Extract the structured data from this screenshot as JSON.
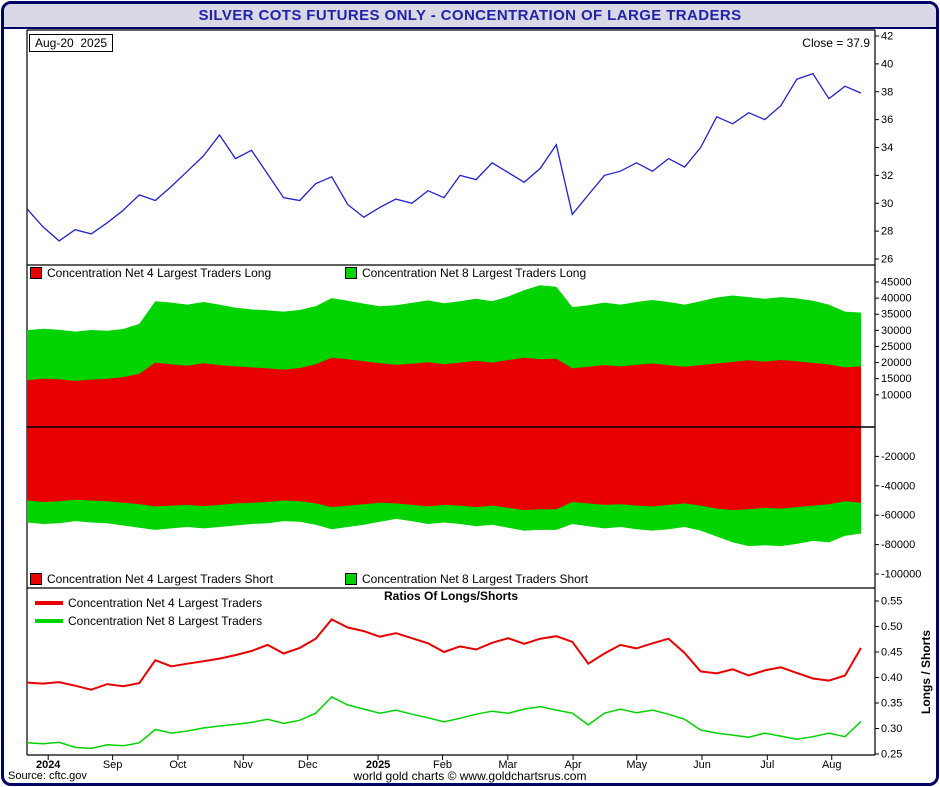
{
  "title": "SILVER COTS FUTURES ONLY - CONCENTRATION OF LARGE TRADERS",
  "footer": {
    "source": "Source: cftc.gov",
    "credit": "world gold charts © www.goldchartsrus.com"
  },
  "colors": {
    "frame_border": "#000066",
    "titlebar_bg": "#d9d9e6",
    "title_text": "#2222aa",
    "price": "#2222cc",
    "red": "#e80000",
    "green": "#00d300",
    "axis_text": "#000000"
  },
  "x_axis": {
    "labels": [
      "2024",
      "Sep",
      "Oct",
      "Nov",
      "Dec",
      "2025",
      "Feb",
      "Mar",
      "Apr",
      "May",
      "Jun",
      "Jul",
      "Aug"
    ],
    "fracs": [
      0.025,
      0.101,
      0.178,
      0.255,
      0.331,
      0.414,
      0.49,
      0.567,
      0.644,
      0.719,
      0.796,
      0.873,
      0.949
    ]
  },
  "chart_data": [
    {
      "type": "line",
      "panel": "price",
      "ylim": [
        26,
        42
      ],
      "y_ticks": [
        42,
        40,
        38,
        36,
        34,
        32,
        30,
        28,
        26
      ],
      "annotations": {
        "date_label": "Aug-20  2025",
        "close_label": "Close = 37.9"
      },
      "series": [
        {
          "name": "price",
          "color_key": "price",
          "values": [
            29.6,
            28.3,
            27.3,
            28.1,
            27.8,
            28.6,
            29.5,
            30.6,
            30.2,
            31.2,
            32.3,
            33.4,
            34.9,
            33.2,
            33.8,
            32.1,
            30.4,
            30.2,
            31.4,
            31.9,
            29.9,
            29.0,
            29.7,
            30.3,
            30.0,
            30.9,
            30.4,
            32.0,
            31.7,
            32.9,
            32.2,
            31.5,
            32.5,
            34.2,
            29.2,
            30.6,
            32.0,
            32.3,
            32.9,
            32.3,
            33.2,
            32.6,
            34.0,
            36.2,
            35.7,
            36.5,
            36.0,
            37.0,
            38.9,
            39.3,
            37.5,
            38.4,
            37.9
          ]
        }
      ]
    },
    {
      "type": "area",
      "panel": "concentration_net_positions",
      "ylim": [
        -100000,
        45000
      ],
      "y_ticks": [
        45000,
        40000,
        35000,
        30000,
        25000,
        20000,
        15000,
        10000,
        -20000,
        -40000,
        -60000,
        -80000,
        -100000
      ],
      "series": [
        {
          "name": "net8_long",
          "label": "Concentration Net 8 Largest Traders Long",
          "color_key": "green",
          "values": [
            30000,
            30500,
            30200,
            29600,
            30100,
            29900,
            30400,
            32000,
            39000,
            38600,
            38000,
            38800,
            38000,
            37000,
            36500,
            36200,
            35800,
            36300,
            37500,
            40000,
            39200,
            38300,
            37500,
            37800,
            38500,
            39300,
            38400,
            39000,
            39800,
            39000,
            40500,
            42500,
            44000,
            43500,
            37200,
            37800,
            38600,
            38000,
            38800,
            39400,
            38800,
            38000,
            39000,
            40200,
            40800,
            40300,
            39800,
            40300,
            39900,
            39200,
            38000,
            35800,
            35500
          ]
        },
        {
          "name": "net4_long",
          "label": "Concentration Net 4 Largest Traders Long",
          "color_key": "red",
          "values": [
            14500,
            15000,
            14800,
            14300,
            14700,
            15000,
            15500,
            16500,
            20000,
            19500,
            19000,
            19800,
            19200,
            18800,
            18500,
            18200,
            17800,
            18300,
            19500,
            21500,
            21000,
            20400,
            19800,
            19300,
            19600,
            20100,
            19500,
            20000,
            20500,
            20000,
            20800,
            21500,
            21000,
            21200,
            18200,
            18700,
            19200,
            18800,
            19300,
            19700,
            19200,
            18700,
            19200,
            19700,
            20200,
            20700,
            20300,
            20800,
            20400,
            19900,
            19400,
            18500,
            18800
          ]
        },
        {
          "name": "net8_short",
          "label": "Concentration Net 8 Largest Traders Short",
          "color_key": "green",
          "values": [
            -65000,
            -66000,
            -65500,
            -64000,
            -65000,
            -65500,
            -67000,
            -68500,
            -70000,
            -69000,
            -68000,
            -69000,
            -68000,
            -67000,
            -66000,
            -65500,
            -64000,
            -64500,
            -66500,
            -69500,
            -68000,
            -66500,
            -64500,
            -62500,
            -64000,
            -66000,
            -65000,
            -66000,
            -67500,
            -66500,
            -68500,
            -70500,
            -70000,
            -70000,
            -66000,
            -67500,
            -69000,
            -68000,
            -69500,
            -70500,
            -69500,
            -68000,
            -70500,
            -74500,
            -78500,
            -81000,
            -80500,
            -81000,
            -79500,
            -77500,
            -78500,
            -74000,
            -72500
          ]
        },
        {
          "name": "net4_short",
          "label": "Concentration Net 4 Largest Traders Short",
          "color_key": "red",
          "values": [
            -50000,
            -51000,
            -50500,
            -49500,
            -50000,
            -50500,
            -51500,
            -52500,
            -54000,
            -53500,
            -53000,
            -53800,
            -53000,
            -52000,
            -51500,
            -51000,
            -50000,
            -50500,
            -52000,
            -54500,
            -53500,
            -52500,
            -51500,
            -52000,
            -53000,
            -54000,
            -53000,
            -53500,
            -54500,
            -53500,
            -55000,
            -56500,
            -56000,
            -56000,
            -51000,
            -52000,
            -53000,
            -52500,
            -53500,
            -54000,
            -53000,
            -52000,
            -53500,
            -55500,
            -56500,
            -56000,
            -55000,
            -55500,
            -54500,
            -53500,
            -52500,
            -50500,
            -51500
          ]
        }
      ]
    },
    {
      "type": "line",
      "panel": "ratios",
      "title": "Ratios Of Longs/Shorts",
      "ylabel": "Longs / Shorts",
      "ylim": [
        0.25,
        0.55
      ],
      "y_ticks": [
        0.55,
        0.5,
        0.45,
        0.4,
        0.35,
        0.3,
        0.25
      ],
      "series": [
        {
          "name": "net4_ratio",
          "label": "Concentration Net 4 Largest Traders",
          "color_key": "red",
          "values": [
            0.39,
            0.388,
            0.391,
            0.384,
            0.376,
            0.387,
            0.383,
            0.389,
            0.434,
            0.422,
            0.427,
            0.432,
            0.437,
            0.444,
            0.452,
            0.464,
            0.447,
            0.458,
            0.476,
            0.514,
            0.498,
            0.491,
            0.48,
            0.487,
            0.477,
            0.467,
            0.45,
            0.461,
            0.455,
            0.468,
            0.477,
            0.466,
            0.476,
            0.481,
            0.47,
            0.427,
            0.447,
            0.464,
            0.457,
            0.467,
            0.476,
            0.448,
            0.412,
            0.408,
            0.416,
            0.404,
            0.414,
            0.42,
            0.409,
            0.398,
            0.394,
            0.404,
            0.458
          ]
        },
        {
          "name": "net8_ratio",
          "label": "Concentration Net 8 Largest Traders",
          "color_key": "green",
          "values": [
            0.272,
            0.27,
            0.273,
            0.263,
            0.261,
            0.268,
            0.266,
            0.272,
            0.298,
            0.291,
            0.295,
            0.301,
            0.305,
            0.308,
            0.312,
            0.318,
            0.31,
            0.316,
            0.33,
            0.362,
            0.346,
            0.338,
            0.33,
            0.336,
            0.328,
            0.321,
            0.313,
            0.32,
            0.328,
            0.334,
            0.33,
            0.338,
            0.343,
            0.336,
            0.33,
            0.307,
            0.33,
            0.338,
            0.331,
            0.336,
            0.328,
            0.318,
            0.297,
            0.291,
            0.287,
            0.283,
            0.291,
            0.285,
            0.279,
            0.284,
            0.291,
            0.284,
            0.314
          ]
        }
      ]
    }
  ]
}
